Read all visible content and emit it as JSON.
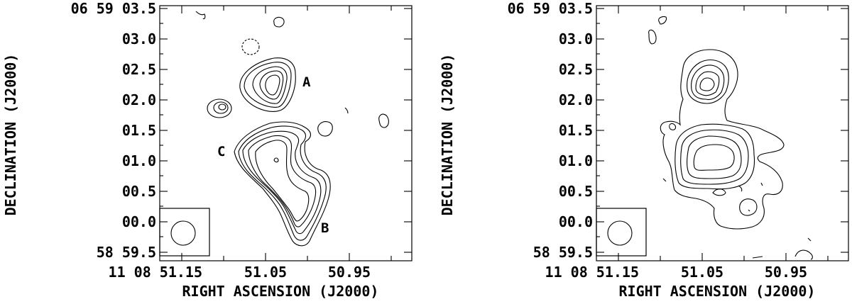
{
  "panels": [
    {
      "id": "left",
      "ylabel": "DECLINATION (J2000)",
      "xlabel": "RIGHT ASCENSION (J2000)",
      "y_ticks": [
        "06 59 03.5",
        "03.0",
        "02.5",
        "02.0",
        "01.5",
        "01.0",
        "00.5",
        "00.0",
        "58 59.5"
      ],
      "x_ticks": [
        "11 08 51.15",
        "51.05",
        "50.95"
      ],
      "annotations": [
        "A",
        "B",
        "C"
      ]
    },
    {
      "id": "right",
      "ylabel": "DECLINATION (J2000)",
      "xlabel": "RIGHT ASCENSION (J2000)",
      "y_ticks": [
        "06 59 03.5",
        "03.0",
        "02.5",
        "02.0",
        "01.5",
        "01.0",
        "00.5",
        "00.0",
        "58 59.5"
      ],
      "x_ticks": [
        "11 08 51.15",
        "51.05",
        "50.95"
      ],
      "annotations": []
    }
  ]
}
